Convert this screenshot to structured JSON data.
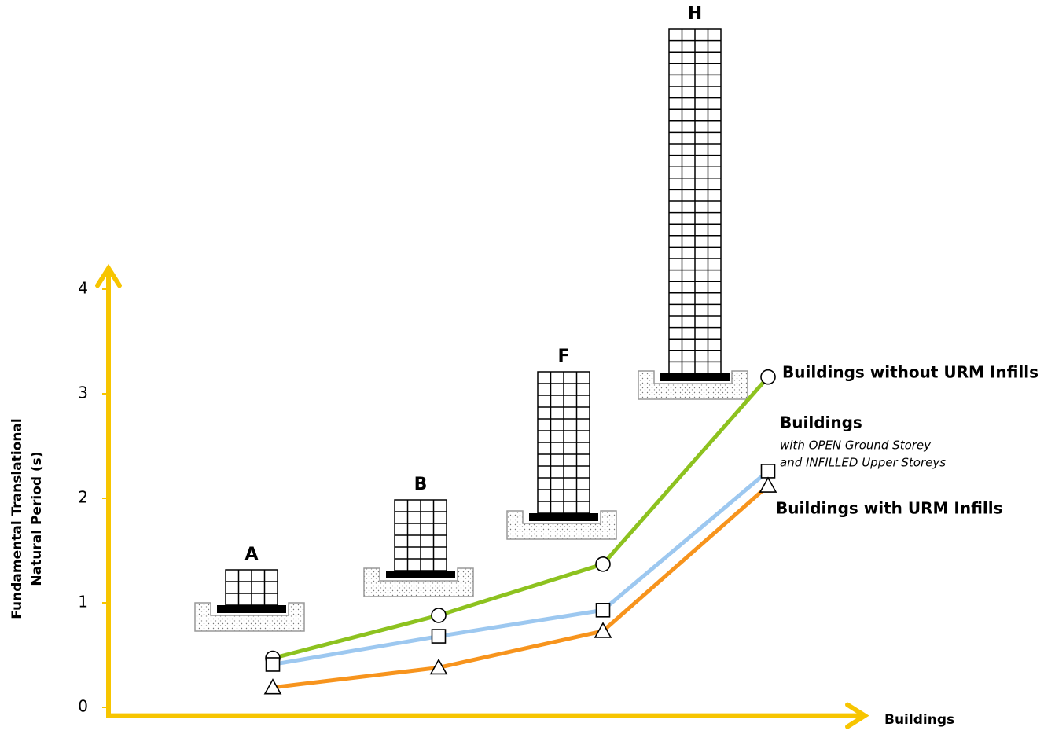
{
  "chart_data": {
    "type": "line",
    "x_label": "Buildings",
    "y_label": [
      "Fundamental Translational",
      "Natural Period (s)"
    ],
    "categories": [
      "A",
      "B",
      "F",
      "H"
    ],
    "ylim": [
      -0.08,
      4.2
    ],
    "yticks": [
      0,
      1,
      2,
      3,
      4
    ],
    "grid": false,
    "series": [
      {
        "name": "Buildings without URM Infills",
        "color": "#8dc21f",
        "marker": "circle",
        "values": [
          0.47,
          0.88,
          1.37,
          3.16
        ]
      },
      {
        "name": [
          "Buildings",
          "with OPEN Ground Storey",
          "and INFILLED Upper Storeys"
        ],
        "color": "#9dc8f0",
        "marker": "square",
        "values": [
          0.41,
          0.68,
          0.93,
          2.26
        ]
      },
      {
        "name": "Buildings with URM Infills",
        "color": "#f7941d",
        "marker": "triangle",
        "values": [
          0.19,
          0.38,
          0.73,
          2.12
        ]
      }
    ]
  }
}
